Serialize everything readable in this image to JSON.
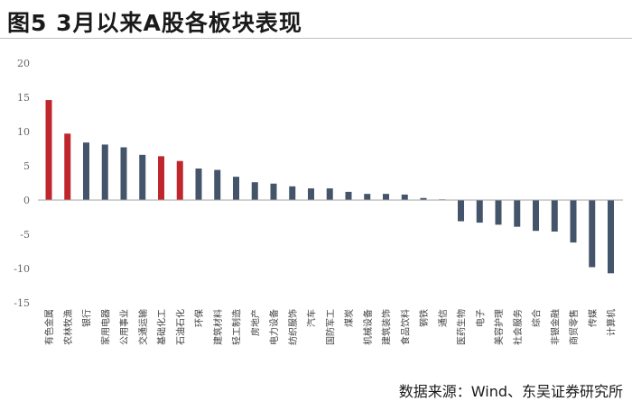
{
  "figure": {
    "title": "图5  3月以来A股各板块表现",
    "source": "数据来源：Wind、东吴证券研究所"
  },
  "colors": {
    "highlight": "#c0272d",
    "normal": "#44546a",
    "axis": "#a6a6a6"
  },
  "chart_data": {
    "type": "bar",
    "title": "3月以来A股各板块表现",
    "xlabel": "",
    "ylabel": "",
    "ylim": [
      -15,
      20
    ],
    "yticks": [
      20,
      15,
      10,
      5,
      0,
      -5,
      -10,
      -15
    ],
    "grid": false,
    "categories": [
      "有色金属",
      "农林牧渔",
      "银行",
      "家用电器",
      "公用事业",
      "交通运输",
      "基础化工",
      "石油石化",
      "环保",
      "建筑材料",
      "轻工制造",
      "房地产",
      "电力设备",
      "纺织服饰",
      "汽车",
      "国防军工",
      "煤炭",
      "机械设备",
      "建筑装饰",
      "食品饮料",
      "钢铁",
      "通信",
      "医药生物",
      "电子",
      "美容护理",
      "社会服务",
      "综合",
      "非银金融",
      "商贸零售",
      "传媒",
      "计算机"
    ],
    "values": [
      14.6,
      9.7,
      8.4,
      8.1,
      7.7,
      6.6,
      6.4,
      5.7,
      4.6,
      4.4,
      3.4,
      2.6,
      2.4,
      2.0,
      1.7,
      1.7,
      1.2,
      0.9,
      0.9,
      0.8,
      0.3,
      0.1,
      -3.1,
      -3.3,
      -3.6,
      -3.9,
      -4.5,
      -4.6,
      -6.2,
      -9.8,
      -10.7
    ],
    "highlighted": [
      "有色金属",
      "农林牧渔",
      "基础化工",
      "石油石化"
    ]
  }
}
